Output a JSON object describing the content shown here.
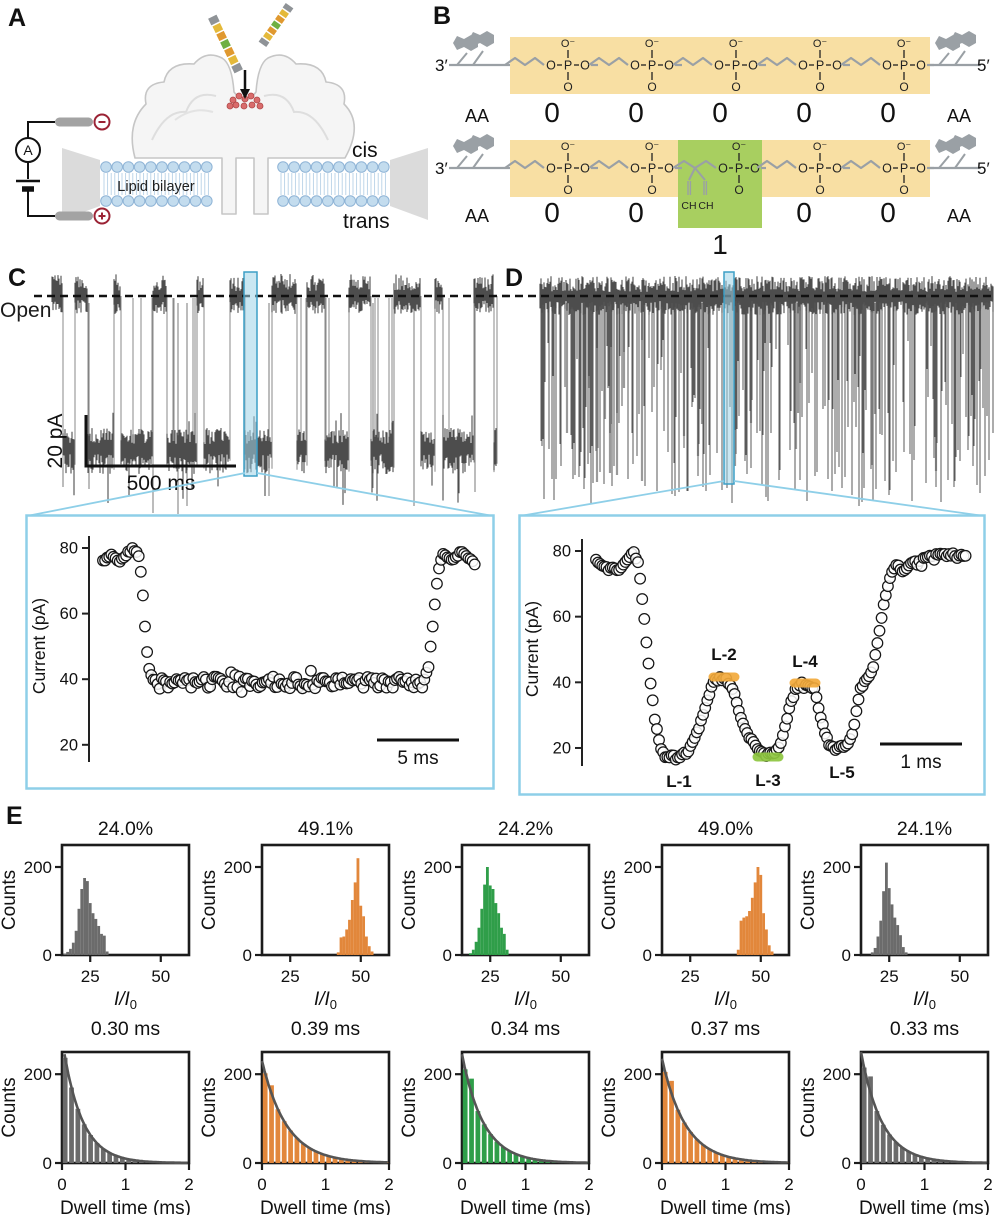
{
  "panels": {
    "A": {
      "label": "A",
      "ammeter": "A",
      "minus": "−",
      "plus": "+",
      "cis": "cis",
      "trans": "trans",
      "bilayer": "Lipid bilayer"
    },
    "B": {
      "label": "B",
      "three_prime": "3′",
      "five_prime": "5′",
      "aa": "AA",
      "rows": [
        {
          "units": [
            "0",
            "0",
            "0",
            "0",
            "0"
          ]
        },
        {
          "units": [
            "0",
            "0",
            "1",
            "0",
            "0"
          ]
        }
      ],
      "phosphate": {
        "top": "O⁻",
        "o": "O",
        "p": "P",
        "bottom": "O"
      },
      "ch": "CH"
    },
    "C": {
      "label": "C",
      "open_label": "Open",
      "scale_v": "20 pA",
      "scale_h": "500 ms"
    },
    "D": {
      "label": "D"
    },
    "E": {
      "label": "E"
    }
  },
  "colors": {
    "trace": "#4d4d4d",
    "dashed": "#111111",
    "highlight_fill": "#9fd4e8",
    "highlight_stroke": "#3d9fc6",
    "inset_border": "#8ecfe8",
    "orange": "#e2873b",
    "green": "#2f9e49",
    "gray": "#6b6b6b",
    "fit": "#555555",
    "box_orange": "#f8dfa3",
    "box_green": "#a8cf60",
    "backbone": "#9aa0a5",
    "lipid_fill": "#c3dcee",
    "lipid_stroke": "#8fb4d6",
    "electrode": "#a3a3a3",
    "terminal": "#9b2335",
    "protein_fill": "#f5f5f5",
    "protein_stroke": "#c6c6c6",
    "residue": "#d96c6c",
    "band_orange": "#f2a93b",
    "band_green": "#8dc63f",
    "dna": [
      "#8f9397",
      "#e4b93a",
      "#e0992f",
      "#6fb043",
      "#e0992f",
      "#e4b93a",
      "#8f9397"
    ]
  },
  "chart_data": [
    {
      "id": "trace_c",
      "type": "line",
      "panel": "C",
      "signal": "nanopore current vs time",
      "open_level_label": "Open",
      "blockade_residual_pct": 50,
      "scale_v": "20 pA",
      "scale_h": "500 ms",
      "seed": 9
    },
    {
      "id": "trace_d",
      "type": "line",
      "panel": "D",
      "signal": "nanopore current vs time",
      "open_level_label": "Open",
      "typical_dwell_ms": 0.35,
      "seed": 11
    },
    {
      "id": "inset_c",
      "type": "scatter",
      "ylabel": "Current (pA)",
      "yticks": [
        20,
        40,
        60,
        80
      ],
      "ylim": [
        10,
        85
      ],
      "scalebar": "5 ms",
      "open_pA": 78,
      "blocked_pA": 39,
      "jitter": 1.8,
      "seed": 3,
      "waypoints": [
        [
          0,
          76
        ],
        [
          0.02,
          78
        ],
        [
          0.045,
          76
        ],
        [
          0.07,
          79
        ],
        [
          0.095,
          78
        ],
        [
          0.105,
          70
        ],
        [
          0.115,
          52
        ],
        [
          0.125,
          42
        ],
        [
          0.14,
          39
        ],
        [
          0.86,
          39
        ],
        [
          0.875,
          44
        ],
        [
          0.888,
          58
        ],
        [
          0.9,
          72
        ],
        [
          0.912,
          78
        ],
        [
          0.94,
          76
        ],
        [
          0.965,
          79
        ],
        [
          1,
          75
        ]
      ]
    },
    {
      "id": "inset_d",
      "type": "scatter",
      "ylabel": "Current (pA)",
      "yticks": [
        20,
        40,
        60,
        80
      ],
      "ylim": [
        10,
        85
      ],
      "scalebar": "1 ms",
      "jitter": 0.85,
      "seed": 4,
      "levels": [
        {
          "label": "L-1",
          "pA": 17
        },
        {
          "label": "L-2",
          "pA": 41
        },
        {
          "label": "L-3",
          "pA": 18
        },
        {
          "label": "L-4",
          "pA": 39
        },
        {
          "label": "L-5",
          "pA": 20
        }
      ],
      "waypoints": [
        [
          0,
          77
        ],
        [
          0.03,
          75
        ],
        [
          0.06,
          74
        ],
        [
          0.085,
          77
        ],
        [
          0.1,
          80
        ],
        [
          0.115,
          76
        ],
        [
          0.13,
          60
        ],
        [
          0.145,
          42
        ],
        [
          0.16,
          28
        ],
        [
          0.175,
          20
        ],
        [
          0.19,
          17
        ],
        [
          0.22,
          17
        ],
        [
          0.25,
          19
        ],
        [
          0.275,
          25
        ],
        [
          0.3,
          34
        ],
        [
          0.315,
          40
        ],
        [
          0.34,
          41
        ],
        [
          0.36,
          40
        ],
        [
          0.375,
          36
        ],
        [
          0.39,
          30
        ],
        [
          0.41,
          24
        ],
        [
          0.435,
          20
        ],
        [
          0.455,
          18
        ],
        [
          0.475,
          18
        ],
        [
          0.495,
          20
        ],
        [
          0.51,
          26
        ],
        [
          0.525,
          33
        ],
        [
          0.54,
          38
        ],
        [
          0.555,
          39
        ],
        [
          0.575,
          39
        ],
        [
          0.59,
          38
        ],
        [
          0.6,
          33
        ],
        [
          0.615,
          26
        ],
        [
          0.63,
          21
        ],
        [
          0.645,
          20
        ],
        [
          0.665,
          20
        ],
        [
          0.68,
          21
        ],
        [
          0.695,
          25
        ],
        [
          0.705,
          32
        ],
        [
          0.715,
          38
        ],
        [
          0.725,
          40
        ],
        [
          0.735,
          41
        ],
        [
          0.75,
          45
        ],
        [
          0.765,
          55
        ],
        [
          0.78,
          65
        ],
        [
          0.795,
          72
        ],
        [
          0.81,
          76
        ],
        [
          0.83,
          74
        ],
        [
          0.85,
          76
        ],
        [
          0.88,
          77
        ],
        [
          0.91,
          78
        ],
        [
          0.95,
          79
        ],
        [
          1,
          78
        ]
      ],
      "bands": [
        {
          "f0": 0.315,
          "f1": 0.375,
          "I": 41.5,
          "color": "orange"
        },
        {
          "f0": 0.435,
          "f1": 0.495,
          "I": 17.3,
          "color": "green"
        },
        {
          "f0": 0.535,
          "f1": 0.595,
          "I": 39.7,
          "color": "orange"
        }
      ],
      "level_labels": [
        {
          "text": "L-1",
          "f": 0.225,
          "I": 16.5,
          "pos": "below"
        },
        {
          "text": "L-2",
          "f": 0.345,
          "I": 42.5,
          "pos": "above"
        },
        {
          "text": "L-3",
          "f": 0.465,
          "I": 17,
          "pos": "below"
        },
        {
          "text": "L-4",
          "f": 0.565,
          "I": 40.5,
          "pos": "above"
        },
        {
          "text": "L-5",
          "f": 0.665,
          "I": 19.5,
          "pos": "below"
        }
      ]
    },
    {
      "id": "hist_i1",
      "type": "bar",
      "title": "24.0%",
      "color": "#6b6b6b",
      "ylabel": "Counts",
      "yticks": [
        0,
        200
      ],
      "ylim": [
        0,
        250
      ],
      "xticks": [
        25,
        50
      ],
      "xlim": [
        15,
        60
      ],
      "xlabel_parts": [
        {
          "t": "I",
          "i": true
        },
        {
          "t": "/",
          "i": true
        },
        {
          "t": "I",
          "i": true
        },
        {
          "t": "0",
          "sub": true
        }
      ],
      "bin_start": 16,
      "bin_width": 1,
      "gap": 0,
      "counts": [
        3,
        7,
        14,
        28,
        55,
        105,
        150,
        175,
        168,
        118,
        95,
        82,
        66,
        48,
        44,
        8
      ]
    },
    {
      "id": "hist_i2",
      "type": "bar",
      "title": "49.1%",
      "color": "#e2873b",
      "ylabel": "Counts",
      "yticks": [
        0,
        200
      ],
      "ylim": [
        0,
        250
      ],
      "xticks": [
        25,
        50
      ],
      "xlim": [
        15,
        60
      ],
      "xlabel_parts": [
        {
          "t": "I",
          "i": true
        },
        {
          "t": "/",
          "i": true
        },
        {
          "t": "I",
          "i": true
        },
        {
          "t": "0",
          "sub": true
        }
      ],
      "bin_start": 42,
      "bin_width": 1,
      "gap": 0,
      "counts": [
        6,
        40,
        42,
        58,
        80,
        125,
        165,
        220,
        112,
        88,
        42,
        20,
        8
      ]
    },
    {
      "id": "hist_i3",
      "type": "bar",
      "title": "24.2%",
      "color": "#2f9e49",
      "ylabel": "Counts",
      "yticks": [
        0,
        200
      ],
      "ylim": [
        0,
        250
      ],
      "xticks": [
        25,
        50
      ],
      "xlim": [
        15,
        60
      ],
      "xlabel_parts": [
        {
          "t": "I",
          "i": true
        },
        {
          "t": "/",
          "i": true
        },
        {
          "t": "I",
          "i": true
        },
        {
          "t": "0",
          "sub": true
        }
      ],
      "bin_start": 18,
      "bin_width": 1,
      "gap": 0,
      "counts": [
        4,
        12,
        30,
        62,
        105,
        160,
        200,
        158,
        150,
        118,
        95,
        62,
        48,
        12
      ]
    },
    {
      "id": "hist_i4",
      "type": "bar",
      "title": "49.0%",
      "color": "#e2873b",
      "ylabel": "Counts",
      "yticks": [
        0,
        200
      ],
      "ylim": [
        0,
        250
      ],
      "xticks": [
        25,
        50
      ],
      "xlim": [
        15,
        60
      ],
      "xlabel_parts": [
        {
          "t": "I",
          "i": true
        },
        {
          "t": "/",
          "i": true
        },
        {
          "t": "I",
          "i": true
        },
        {
          "t": "0",
          "sub": true
        }
      ],
      "bin_start": 42,
      "bin_width": 1,
      "gap": 0,
      "counts": [
        12,
        78,
        85,
        88,
        100,
        130,
        165,
        200,
        182,
        95,
        58,
        22,
        8
      ]
    },
    {
      "id": "hist_i5",
      "type": "bar",
      "title": "24.1%",
      "color": "#6b6b6b",
      "ylabel": "Counts",
      "yticks": [
        0,
        200
      ],
      "ylim": [
        0,
        250
      ],
      "xticks": [
        25,
        50
      ],
      "xlim": [
        15,
        60
      ],
      "xlabel_parts": [
        {
          "t": "I",
          "i": true
        },
        {
          "t": "/",
          "i": true
        },
        {
          "t": "I",
          "i": true
        },
        {
          "t": "0",
          "sub": true
        }
      ],
      "bin_start": 19,
      "bin_width": 1,
      "gap": 0,
      "counts": [
        6,
        16,
        42,
        78,
        145,
        210,
        152,
        115,
        85,
        68,
        45,
        18,
        6
      ]
    },
    {
      "id": "hist_t1",
      "type": "bar",
      "title": "0.30 ms",
      "color": "#6b6b6b",
      "ylabel": "Counts",
      "yticks": [
        0,
        200
      ],
      "ylim": [
        0,
        250
      ],
      "xticks": [
        0,
        1,
        2
      ],
      "xlim": [
        0,
        2
      ],
      "xlabel_parts": [
        {
          "t": "Dwell time (ms)"
        }
      ],
      "bin_start": 0.05,
      "bin_width": 0.1,
      "gap": 1.6,
      "fit": {
        "A": 280,
        "tau": 0.3
      },
      "counts": [
        237,
        170,
        122,
        87,
        63,
        45,
        32,
        23,
        17,
        12,
        9,
        6,
        5,
        3,
        2,
        2,
        1,
        1,
        1,
        0
      ]
    },
    {
      "id": "hist_t2",
      "type": "bar",
      "title": "0.39 ms",
      "color": "#e2873b",
      "ylabel": "Counts",
      "yticks": [
        0,
        200
      ],
      "ylim": [
        0,
        250
      ],
      "xticks": [
        0,
        1,
        2
      ],
      "xlim": [
        0,
        2
      ],
      "xlabel_parts": [
        {
          "t": "Dwell time (ms)"
        }
      ],
      "bin_start": 0.05,
      "bin_width": 0.1,
      "gap": 1.6,
      "fit": {
        "A": 230,
        "tau": 0.39
      },
      "counts": [
        202,
        175,
        121,
        94,
        73,
        56,
        43,
        34,
        26,
        20,
        16,
        12,
        9,
        7,
        6,
        4,
        3,
        3,
        2,
        2
      ]
    },
    {
      "id": "hist_t3",
      "type": "bar",
      "title": "0.34 ms",
      "color": "#2f9e49",
      "ylabel": "Counts",
      "yticks": [
        0,
        200
      ],
      "ylim": [
        0,
        250
      ],
      "xticks": [
        0,
        1,
        2
      ],
      "xlim": [
        0,
        2
      ],
      "xlabel_parts": [
        {
          "t": "Dwell time (ms)"
        }
      ],
      "bin_start": 0.05,
      "bin_width": 0.1,
      "gap": 1.6,
      "fit": {
        "A": 245,
        "tau": 0.34
      },
      "counts": [
        211,
        190,
        117,
        87,
        65,
        48,
        36,
        27,
        20,
        15,
        11,
        8,
        6,
        5,
        3,
        3,
        2,
        1,
        1,
        1
      ]
    },
    {
      "id": "hist_t4",
      "type": "bar",
      "title": "0.37 ms",
      "color": "#e2873b",
      "ylabel": "Counts",
      "yticks": [
        0,
        200
      ],
      "ylim": [
        0,
        250
      ],
      "xticks": [
        0,
        1,
        2
      ],
      "xlim": [
        0,
        2
      ],
      "xlabel_parts": [
        {
          "t": "Dwell time (ms)"
        }
      ],
      "bin_start": 0.05,
      "bin_width": 0.1,
      "gap": 1.6,
      "fit": {
        "A": 235,
        "tau": 0.37
      },
      "counts": [
        205,
        185,
        120,
        91,
        70,
        53,
        41,
        31,
        24,
        18,
        14,
        10,
        8,
        6,
        5,
        3,
        3,
        2,
        2,
        1
      ]
    },
    {
      "id": "hist_t5",
      "type": "bar",
      "title": "0.33 ms",
      "color": "#6b6b6b",
      "ylabel": "Counts",
      "yticks": [
        0,
        200
      ],
      "ylim": [
        0,
        250
      ],
      "xticks": [
        0,
        1,
        2
      ],
      "xlim": [
        0,
        2
      ],
      "xlabel_parts": [
        {
          "t": "Dwell time (ms)"
        }
      ],
      "bin_start": 0.05,
      "bin_width": 0.1,
      "gap": 1.6,
      "fit": {
        "A": 250,
        "tau": 0.33
      },
      "counts": [
        215,
        195,
        117,
        86,
        64,
        47,
        35,
        26,
        19,
        14,
        10,
        8,
        6,
        4,
        3,
        2,
        2,
        1,
        1,
        1
      ]
    }
  ]
}
